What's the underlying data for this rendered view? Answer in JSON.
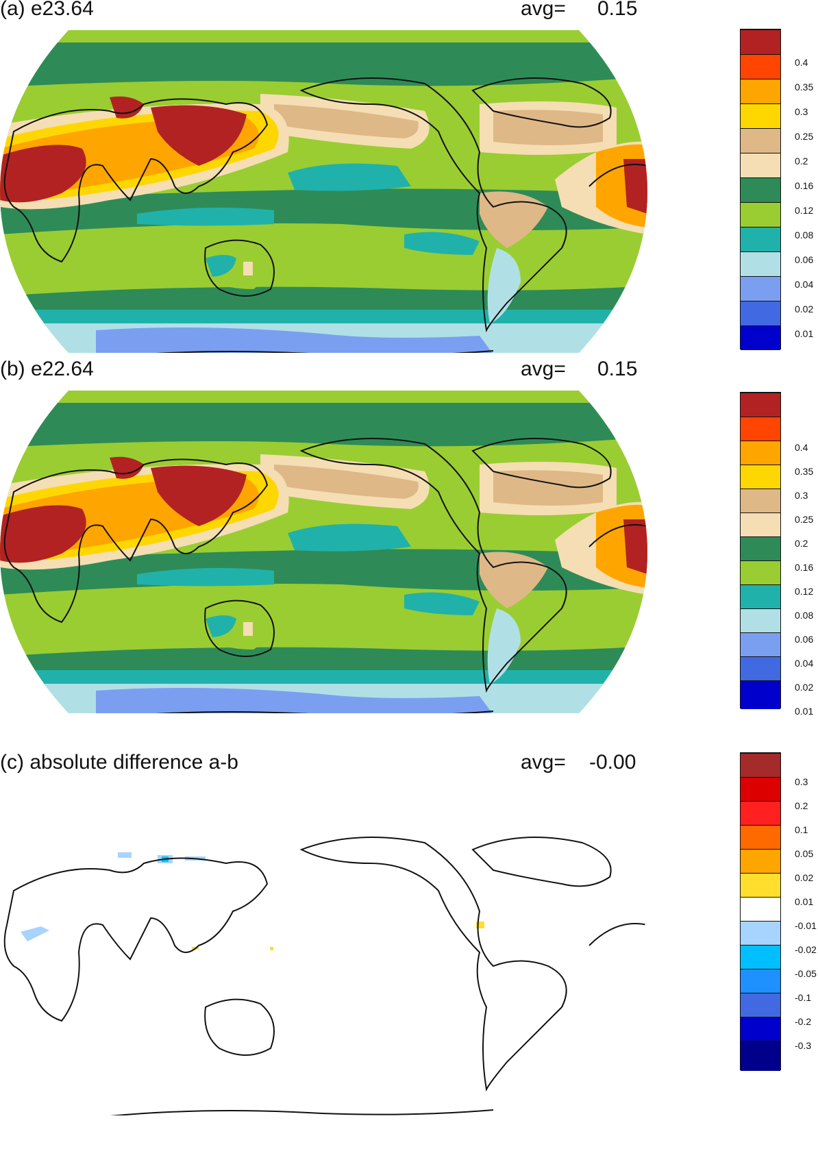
{
  "panels": [
    {
      "title": "(a) e23.64",
      "avg_label": "avg=",
      "avg_value": "0.15",
      "colorbar": {
        "labels": [
          "0.4",
          "0.35",
          "0.3",
          "0.25",
          "0.2",
          "0.16",
          "0.12",
          "0.08",
          "0.06",
          "0.04",
          "0.02",
          "0.01"
        ],
        "colors": [
          "#b22222",
          "#ff4500",
          "#ffa500",
          "#ffd700",
          "#deb887",
          "#f5deb3",
          "#2e8b57",
          "#9acd32",
          "#20b2aa",
          "#b0e0e6",
          "#7b9ff0",
          "#4169e1",
          "#0000cd"
        ]
      }
    },
    {
      "title": "(b) e22.64",
      "avg_label": "avg=",
      "avg_value": "0.15",
      "colorbar": {
        "labels": [
          "0.4",
          "0.35",
          "0.3",
          "0.25",
          "0.2",
          "0.16",
          "0.12",
          "0.08",
          "0.06",
          "0.04",
          "0.02",
          "0.01"
        ],
        "colors": [
          "#b22222",
          "#ff4500",
          "#ffa500",
          "#ffd700",
          "#deb887",
          "#f5deb3",
          "#2e8b57",
          "#9acd32",
          "#20b2aa",
          "#b0e0e6",
          "#7b9ff0",
          "#4169e1",
          "#0000cd"
        ]
      }
    },
    {
      "title": "(c) absolute difference a-b",
      "avg_label": "avg=",
      "avg_value": "-0.00",
      "colorbar": {
        "labels": [
          "0.3",
          "0.2",
          "0.1",
          "0.05",
          "0.02",
          "0.01",
          "-0.01",
          "-0.02",
          "-0.05",
          "-0.1",
          "-0.2",
          "-0.3"
        ],
        "colors": [
          "#a52a2a",
          "#dd0000",
          "#ff2020",
          "#ff6a00",
          "#ffa500",
          "#ffde2e",
          "#ffffff",
          "#a6d4ff",
          "#00bfff",
          "#1e90ff",
          "#4169e1",
          "#0000cd",
          "#00008b"
        ]
      }
    }
  ],
  "map_colors": {
    "ocean_default": "#9acd32",
    "band_dark_green": "#2e8b57",
    "band_tan": "#deb887",
    "band_wheat": "#f5deb3",
    "band_yellow": "#ffd700",
    "band_orange": "#ffa500",
    "band_red_orange": "#ff4500",
    "band_dark_red": "#b22222",
    "band_teal": "#20b2aa",
    "band_light_blue": "#b0e0e6",
    "band_periwinkle": "#7b9ff0",
    "diff_background": "#ffffff",
    "diff_light_blue": "#a6d4ff",
    "diff_cyan": "#00bfff",
    "diff_yellow": "#ffde2e"
  }
}
